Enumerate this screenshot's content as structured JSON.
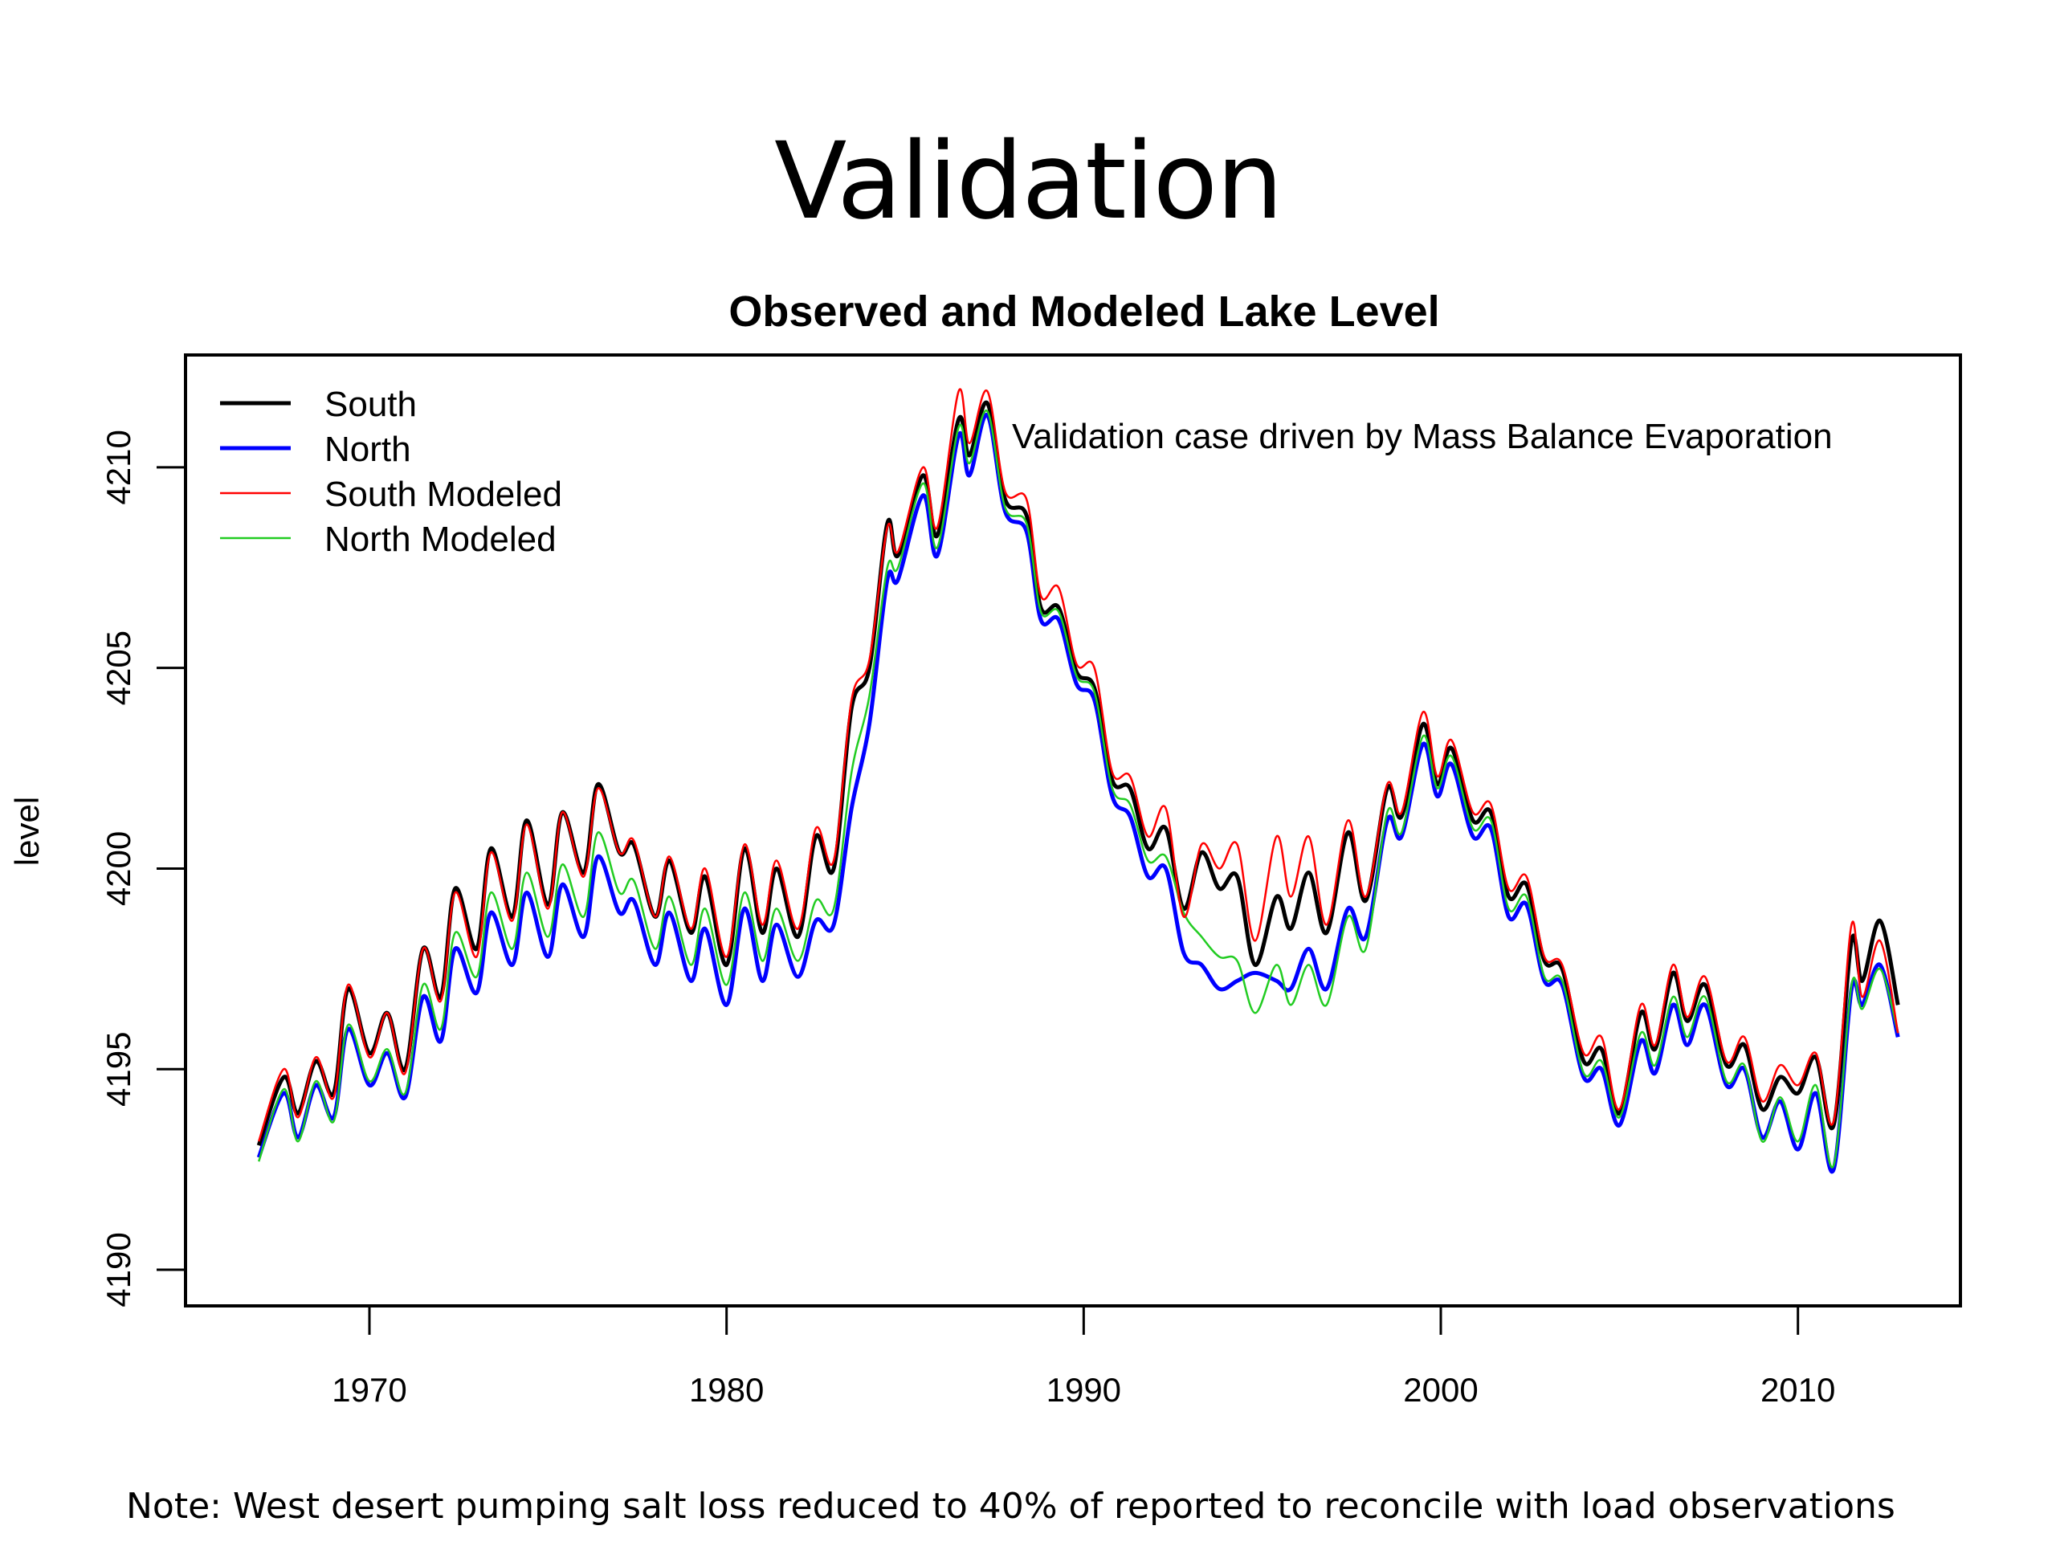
{
  "slide": {
    "title": "Validation",
    "footnote": "Note:  West desert pumping salt loss reduced to 40% of reported to reconcile with load observations"
  },
  "chart_data": {
    "type": "line",
    "title": "Observed and Modeled Lake Level",
    "xlabel": "",
    "ylabel": "level",
    "xlim": [
      1964.85,
      2014.55
    ],
    "ylim": [
      4189.1,
      4212.8
    ],
    "xticks": [
      1970,
      1980,
      1990,
      2000,
      2010
    ],
    "yticks": [
      4190,
      4195,
      4200,
      4205,
      4210
    ],
    "grid": false,
    "legend_position": "top-left",
    "annotation": "Validation case driven by Mass Balance Evaporation",
    "x": [
      1966.9,
      1967.6,
      1968.0,
      1968.5,
      1969.0,
      1969.4,
      1970.0,
      1970.5,
      1971.0,
      1971.5,
      1972.0,
      1972.4,
      1973.0,
      1973.4,
      1974.0,
      1974.4,
      1975.0,
      1975.4,
      1976.0,
      1976.4,
      1977.0,
      1977.4,
      1978.0,
      1978.4,
      1979.0,
      1979.4,
      1980.0,
      1980.5,
      1981.0,
      1981.4,
      1982.0,
      1982.5,
      1983.0,
      1983.5,
      1984.0,
      1984.5,
      1984.8,
      1985.5,
      1985.9,
      1986.5,
      1986.8,
      1987.3,
      1987.8,
      1988.4,
      1988.8,
      1989.3,
      1989.8,
      1990.3,
      1990.8,
      1991.3,
      1991.8,
      1992.3,
      1992.8,
      1993.3,
      1993.8,
      1994.3,
      1994.8,
      1995.4,
      1995.8,
      1996.3,
      1996.8,
      1997.4,
      1997.9,
      1998.5,
      1998.9,
      1999.5,
      1999.9,
      2000.3,
      2000.9,
      2001.4,
      2001.9,
      2002.4,
      2002.9,
      2003.4,
      2004.0,
      2004.5,
      2005.0,
      2005.6,
      2006.0,
      2006.5,
      2006.9,
      2007.4,
      2008.0,
      2008.5,
      2009.0,
      2009.5,
      2010.0,
      2010.5,
      2011.0,
      2011.5,
      2011.8,
      2012.3,
      2012.8
    ],
    "series": [
      {
        "name": "South",
        "color": "#000000",
        "values": [
          4193.1,
          4194.8,
          4193.9,
          4195.2,
          4194.4,
          4197.0,
          4195.4,
          4196.4,
          4195.0,
          4198.0,
          4196.8,
          4199.5,
          4198.0,
          4200.5,
          4198.8,
          4201.2,
          4199.1,
          4201.4,
          4199.9,
          4202.1,
          4200.4,
          4200.6,
          4198.8,
          4200.2,
          4198.4,
          4199.8,
          4197.6,
          4200.5,
          4198.4,
          4200.0,
          4198.3,
          4200.8,
          4200.0,
          4204.0,
          4205.0,
          4208.6,
          4207.8,
          4209.8,
          4208.3,
          4211.2,
          4210.3,
          4211.6,
          4209.2,
          4208.8,
          4206.5,
          4206.5,
          4204.9,
          4204.5,
          4202.2,
          4202.0,
          4200.5,
          4201.0,
          4199.0,
          4200.4,
          4199.5,
          4199.8,
          4197.6,
          4199.3,
          4198.5,
          4199.9,
          4198.4,
          4200.9,
          4199.2,
          4202.0,
          4201.3,
          4203.6,
          4202.1,
          4203.0,
          4201.2,
          4201.4,
          4199.3,
          4199.6,
          4197.7,
          4197.5,
          4195.2,
          4195.5,
          4193.9,
          4196.4,
          4195.5,
          4197.4,
          4196.2,
          4197.1,
          4195.1,
          4195.6,
          4194.0,
          4194.8,
          4194.4,
          4195.3,
          4193.6,
          4198.2,
          4197.2,
          4198.7,
          4196.6
        ]
      },
      {
        "name": "North",
        "color": "#0000ff",
        "values": [
          4192.8,
          4194.4,
          4193.3,
          4194.6,
          4193.8,
          4196.0,
          4194.6,
          4195.4,
          4194.3,
          4196.8,
          4195.7,
          4198.0,
          4196.9,
          4198.9,
          4197.6,
          4199.4,
          4197.8,
          4199.6,
          4198.3,
          4200.3,
          4198.9,
          4199.2,
          4197.6,
          4198.9,
          4197.2,
          4198.5,
          4196.6,
          4199.0,
          4197.2,
          4198.6,
          4197.3,
          4198.7,
          4198.6,
          4201.5,
          4203.6,
          4207.2,
          4207.2,
          4209.3,
          4207.8,
          4210.8,
          4209.8,
          4211.3,
          4208.9,
          4208.4,
          4206.2,
          4206.2,
          4204.6,
          4204.2,
          4201.8,
          4201.3,
          4199.8,
          4200.0,
          4197.9,
          4197.6,
          4197.0,
          4197.2,
          4197.4,
          4197.2,
          4197.0,
          4198.0,
          4197.0,
          4199.0,
          4198.3,
          4201.2,
          4200.8,
          4203.1,
          4201.8,
          4202.6,
          4200.8,
          4201.0,
          4198.8,
          4199.1,
          4197.2,
          4197.1,
          4194.8,
          4195.0,
          4193.6,
          4195.7,
          4194.9,
          4196.6,
          4195.6,
          4196.6,
          4194.6,
          4195.0,
          4193.3,
          4194.2,
          4193.0,
          4194.4,
          4192.5,
          4197.0,
          4196.6,
          4197.6,
          4195.8
        ]
      },
      {
        "name": "South Modeled",
        "color": "#ff0000",
        "values": [
          4193.2,
          4195.0,
          4193.8,
          4195.3,
          4194.3,
          4197.1,
          4195.3,
          4196.4,
          4194.9,
          4198.0,
          4196.7,
          4199.4,
          4197.8,
          4200.4,
          4198.7,
          4201.1,
          4199.0,
          4201.4,
          4199.8,
          4202.0,
          4200.4,
          4200.7,
          4198.8,
          4200.3,
          4198.5,
          4200.0,
          4197.8,
          4200.6,
          4198.6,
          4200.2,
          4198.5,
          4201.0,
          4200.2,
          4204.2,
          4205.2,
          4208.5,
          4207.9,
          4210.0,
          4208.5,
          4211.9,
          4210.6,
          4211.9,
          4209.4,
          4209.2,
          4206.8,
          4207.0,
          4205.1,
          4205.0,
          4202.4,
          4202.3,
          4200.8,
          4201.5,
          4198.8,
          4200.6,
          4200.0,
          4200.6,
          4198.2,
          4200.8,
          4199.3,
          4200.8,
          4198.6,
          4201.2,
          4199.3,
          4202.1,
          4201.4,
          4203.9,
          4202.3,
          4203.2,
          4201.4,
          4201.6,
          4199.5,
          4199.8,
          4197.8,
          4197.6,
          4195.4,
          4195.8,
          4194.0,
          4196.6,
          4195.6,
          4197.6,
          4196.3,
          4197.3,
          4195.2,
          4195.8,
          4194.2,
          4195.1,
          4194.6,
          4195.4,
          4193.7,
          4198.6,
          4196.8,
          4198.2,
          4195.9
        ]
      },
      {
        "name": "North Modeled",
        "color": "#22cc22",
        "values": [
          4192.7,
          4194.5,
          4193.2,
          4194.7,
          4193.7,
          4196.1,
          4194.7,
          4195.5,
          4194.4,
          4197.1,
          4196.0,
          4198.4,
          4197.3,
          4199.4,
          4198.0,
          4199.9,
          4198.3,
          4200.1,
          4198.8,
          4200.9,
          4199.4,
          4199.7,
          4198.0,
          4199.3,
          4197.6,
          4199.0,
          4197.1,
          4199.4,
          4197.7,
          4199.0,
          4197.7,
          4199.2,
          4199.0,
          4202.4,
          4204.3,
          4207.5,
          4207.5,
          4209.6,
          4208.0,
          4211.0,
          4210.1,
          4211.4,
          4209.0,
          4208.6,
          4206.4,
          4206.4,
          4204.8,
          4204.4,
          4202.0,
          4201.6,
          4200.2,
          4200.3,
          4198.9,
          4198.3,
          4197.8,
          4197.7,
          4196.4,
          4197.6,
          4196.6,
          4197.6,
          4196.6,
          4198.8,
          4198.0,
          4201.4,
          4200.9,
          4203.3,
          4202.0,
          4202.8,
          4201.0,
          4201.2,
          4199.0,
          4199.3,
          4197.3,
          4197.2,
          4194.9,
          4195.2,
          4193.8,
          4195.9,
          4195.1,
          4196.8,
          4195.8,
          4196.8,
          4194.7,
          4195.1,
          4193.2,
          4194.3,
          4193.2,
          4194.6,
          4192.6,
          4197.1,
          4196.5,
          4197.5,
          4195.9
        ]
      }
    ]
  }
}
